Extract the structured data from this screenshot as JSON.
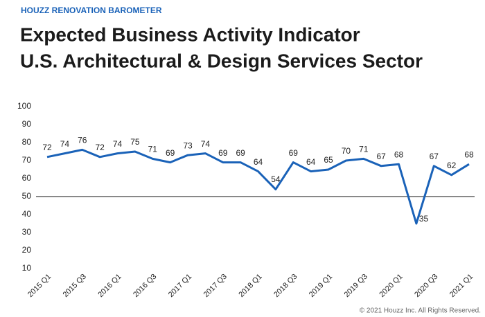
{
  "chart_data": {
    "type": "line",
    "kicker": "HOUZZ RENOVATION BAROMETER",
    "title": [
      "Expected Business Activity Indicator",
      "U.S. Architectural & Design Services Sector"
    ],
    "categories": [
      "2015 Q1",
      null,
      "2015 Q3",
      null,
      "2016 Q1",
      null,
      "2016 Q3",
      null,
      "2017 Q1",
      null,
      "2017 Q3",
      null,
      "2018 Q1",
      null,
      "2018 Q3",
      null,
      "2019 Q1",
      null,
      "2019 Q3",
      null,
      "2020 Q1",
      null,
      "2020 Q3",
      null,
      "2021 Q1"
    ],
    "values": [
      72,
      74,
      76,
      72,
      74,
      75,
      71,
      69,
      73,
      74,
      69,
      69,
      64,
      54,
      69,
      64,
      65,
      70,
      71,
      67,
      68,
      35,
      67,
      62,
      68
    ],
    "color": "#1a62b8",
    "ylim": [
      10,
      100
    ],
    "yticks": [
      10,
      20,
      30,
      40,
      50,
      60,
      70,
      80,
      90,
      100
    ],
    "reference_line": 50,
    "copyright": "© 2021 Houzz Inc. All Rights Reserved."
  }
}
